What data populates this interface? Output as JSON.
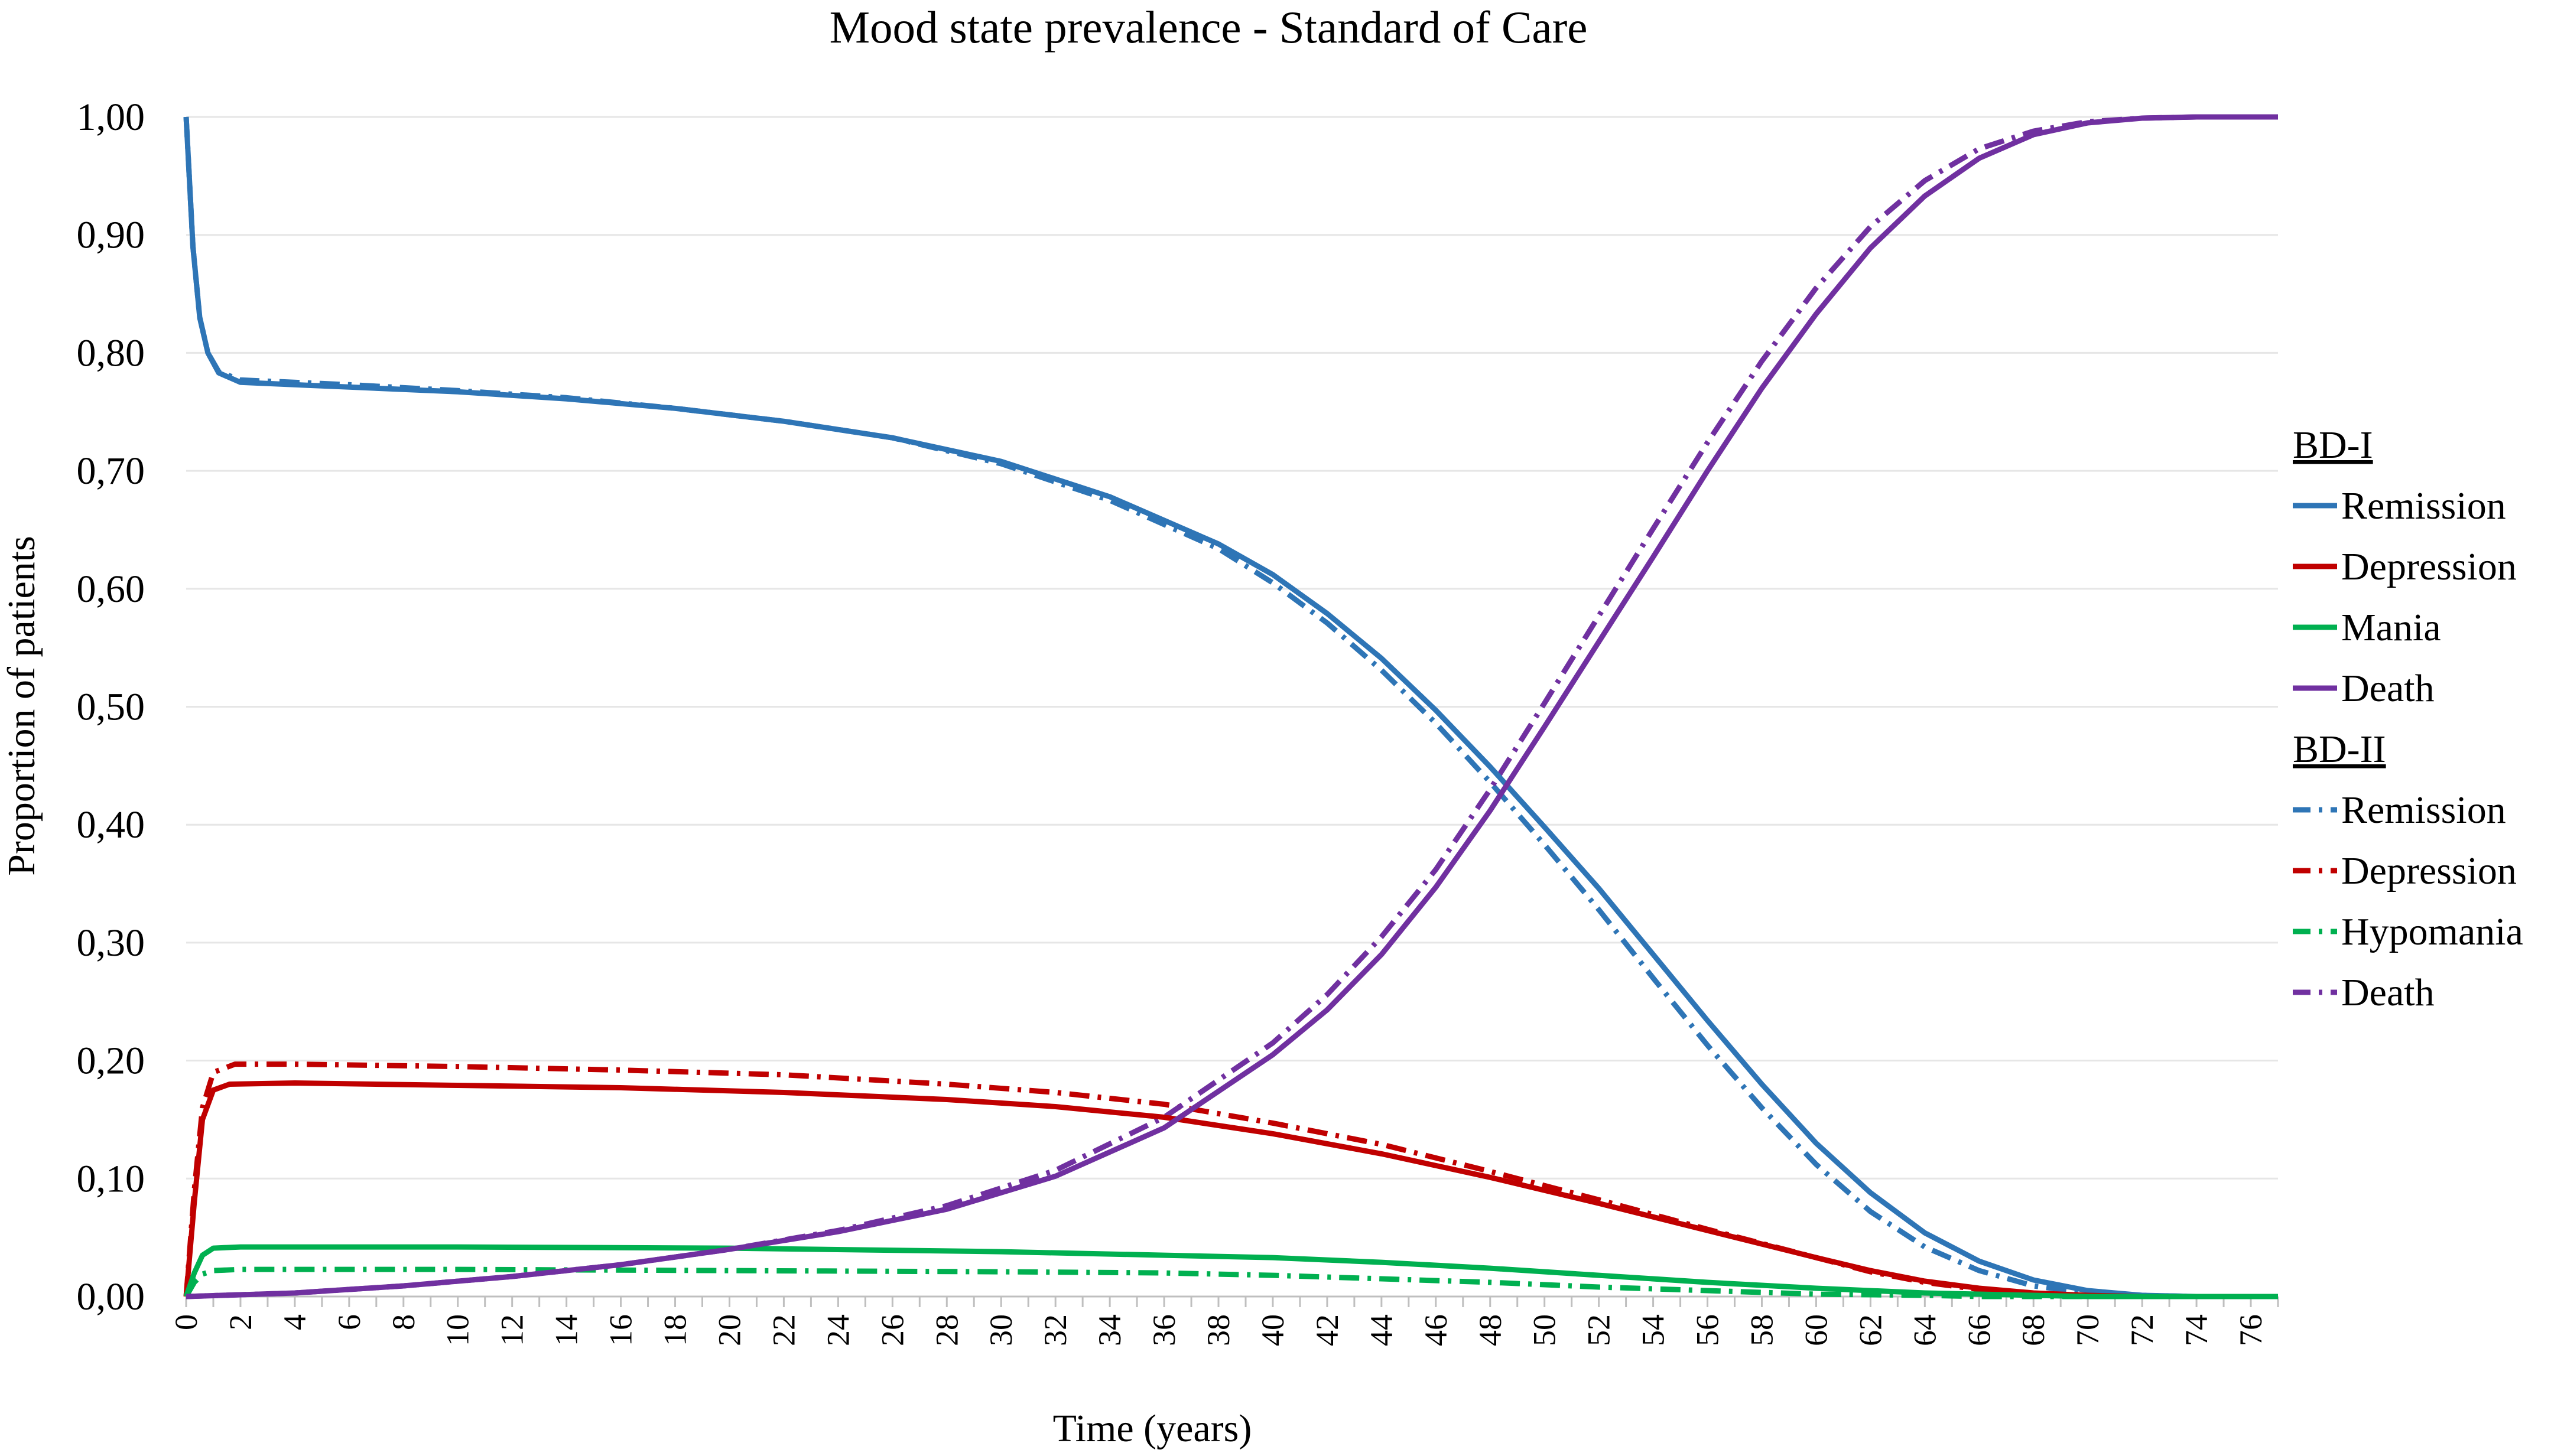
{
  "chart_data": {
    "type": "line",
    "title": "Mood state prevalence - Standard of Care",
    "xlabel": "Time (years)",
    "ylabel": "Proportion of patients",
    "xlim": [
      0,
      77
    ],
    "ylim": [
      0,
      1
    ],
    "x_ticks": [
      "0",
      "2",
      "4",
      "6",
      "8",
      "10",
      "12",
      "14",
      "16",
      "18",
      "20",
      "22",
      "24",
      "26",
      "28",
      "30",
      "32",
      "34",
      "36",
      "38",
      "40",
      "42",
      "44",
      "46",
      "48",
      "50",
      "52",
      "54",
      "56",
      "58",
      "60",
      "62",
      "64",
      "66",
      "68",
      "70",
      "72",
      "74",
      "76"
    ],
    "y_ticks": [
      "0,00",
      "0,10",
      "0,20",
      "0,30",
      "0,40",
      "0,50",
      "0,60",
      "0,70",
      "0,80",
      "0,90",
      "1,00"
    ],
    "colors": {
      "remission": "#2E75B6",
      "depression": "#C00000",
      "mania": "#00B050",
      "death": "#7030A0"
    },
    "legend": {
      "groups": [
        {
          "name": "BD-I",
          "entries": [
            "Remission",
            "Depression",
            "Mania",
            "Death"
          ]
        },
        {
          "name": "BD-II",
          "entries": [
            "Remission",
            "Depression",
            "Hypomania",
            "Death"
          ]
        }
      ]
    },
    "series": [
      {
        "name": "BD-I Remission",
        "group": "BD-I",
        "color": "#2E75B6",
        "style": "solid",
        "points": [
          [
            0,
            1.0
          ],
          [
            0.25,
            0.89
          ],
          [
            0.5,
            0.83
          ],
          [
            0.8,
            0.8
          ],
          [
            1.2,
            0.783
          ],
          [
            2,
            0.775
          ],
          [
            6,
            0.771
          ],
          [
            10,
            0.767
          ],
          [
            14,
            0.761
          ],
          [
            18,
            0.753
          ],
          [
            22,
            0.742
          ],
          [
            26,
            0.728
          ],
          [
            30,
            0.708
          ],
          [
            34,
            0.678
          ],
          [
            38,
            0.638
          ],
          [
            40,
            0.612
          ],
          [
            42,
            0.579
          ],
          [
            44,
            0.541
          ],
          [
            46,
            0.497
          ],
          [
            48,
            0.449
          ],
          [
            50,
            0.398
          ],
          [
            52,
            0.346
          ],
          [
            54,
            0.29
          ],
          [
            56,
            0.234
          ],
          [
            58,
            0.18
          ],
          [
            60,
            0.13
          ],
          [
            62,
            0.088
          ],
          [
            64,
            0.054
          ],
          [
            66,
            0.03
          ],
          [
            68,
            0.014
          ],
          [
            70,
            0.005
          ],
          [
            72,
            0.001
          ],
          [
            74,
            0
          ],
          [
            77,
            0
          ]
        ]
      },
      {
        "name": "BD-I Depression",
        "group": "BD-I",
        "color": "#C00000",
        "style": "solid",
        "points": [
          [
            0,
            0
          ],
          [
            0.3,
            0.08
          ],
          [
            0.6,
            0.15
          ],
          [
            1,
            0.175
          ],
          [
            1.6,
            0.18
          ],
          [
            4,
            0.181
          ],
          [
            10,
            0.179
          ],
          [
            16,
            0.177
          ],
          [
            22,
            0.173
          ],
          [
            28,
            0.167
          ],
          [
            32,
            0.161
          ],
          [
            36,
            0.152
          ],
          [
            40,
            0.138
          ],
          [
            44,
            0.121
          ],
          [
            48,
            0.101
          ],
          [
            52,
            0.079
          ],
          [
            56,
            0.056
          ],
          [
            60,
            0.033
          ],
          [
            62,
            0.022
          ],
          [
            64,
            0.013
          ],
          [
            66,
            0.007
          ],
          [
            68,
            0.003
          ],
          [
            70,
            0.001
          ],
          [
            72,
            0
          ],
          [
            77,
            0
          ]
        ]
      },
      {
        "name": "BD-I Mania",
        "group": "BD-I",
        "color": "#00B050",
        "style": "solid",
        "points": [
          [
            0,
            0
          ],
          [
            0.3,
            0.02
          ],
          [
            0.6,
            0.035
          ],
          [
            1,
            0.041
          ],
          [
            2,
            0.042
          ],
          [
            10,
            0.042
          ],
          [
            20,
            0.041
          ],
          [
            30,
            0.038
          ],
          [
            36,
            0.035
          ],
          [
            40,
            0.033
          ],
          [
            44,
            0.029
          ],
          [
            48,
            0.024
          ],
          [
            52,
            0.018
          ],
          [
            56,
            0.012
          ],
          [
            60,
            0.007
          ],
          [
            64,
            0.003
          ],
          [
            68,
            0.001
          ],
          [
            70,
            0
          ],
          [
            77,
            0
          ]
        ]
      },
      {
        "name": "BD-I Death",
        "group": "BD-I",
        "color": "#7030A0",
        "style": "solid",
        "points": [
          [
            0,
            0
          ],
          [
            4,
            0.003
          ],
          [
            8,
            0.009
          ],
          [
            12,
            0.017
          ],
          [
            16,
            0.027
          ],
          [
            20,
            0.04
          ],
          [
            24,
            0.055
          ],
          [
            28,
            0.074
          ],
          [
            32,
            0.102
          ],
          [
            36,
            0.143
          ],
          [
            40,
            0.205
          ],
          [
            42,
            0.243
          ],
          [
            44,
            0.29
          ],
          [
            46,
            0.347
          ],
          [
            48,
            0.412
          ],
          [
            50,
            0.483
          ],
          [
            52,
            0.555
          ],
          [
            54,
            0.627
          ],
          [
            56,
            0.7
          ],
          [
            58,
            0.77
          ],
          [
            60,
            0.833
          ],
          [
            62,
            0.889
          ],
          [
            64,
            0.933
          ],
          [
            66,
            0.965
          ],
          [
            68,
            0.985
          ],
          [
            70,
            0.995
          ],
          [
            72,
            0.999
          ],
          [
            74,
            1.0
          ],
          [
            77,
            1.0
          ]
        ]
      },
      {
        "name": "BD-II Remission",
        "group": "BD-II",
        "color": "#2E75B6",
        "style": "dashdot",
        "points": [
          [
            0,
            1.0
          ],
          [
            0.25,
            0.89
          ],
          [
            0.5,
            0.83
          ],
          [
            0.8,
            0.8
          ],
          [
            1.2,
            0.784
          ],
          [
            2,
            0.777
          ],
          [
            6,
            0.773
          ],
          [
            10,
            0.768
          ],
          [
            14,
            0.762
          ],
          [
            18,
            0.753
          ],
          [
            22,
            0.742
          ],
          [
            26,
            0.728
          ],
          [
            30,
            0.706
          ],
          [
            34,
            0.675
          ],
          [
            38,
            0.634
          ],
          [
            40,
            0.605
          ],
          [
            42,
            0.571
          ],
          [
            44,
            0.531
          ],
          [
            46,
            0.486
          ],
          [
            48,
            0.436
          ],
          [
            50,
            0.383
          ],
          [
            52,
            0.328
          ],
          [
            54,
            0.27
          ],
          [
            56,
            0.213
          ],
          [
            58,
            0.16
          ],
          [
            60,
            0.112
          ],
          [
            62,
            0.072
          ],
          [
            64,
            0.042
          ],
          [
            66,
            0.022
          ],
          [
            68,
            0.009
          ],
          [
            70,
            0.003
          ],
          [
            72,
            0.001
          ],
          [
            74,
            0
          ],
          [
            77,
            0
          ]
        ]
      },
      {
        "name": "BD-II Depression",
        "group": "BD-II",
        "color": "#C00000",
        "style": "dashdot",
        "points": [
          [
            0,
            0
          ],
          [
            0.3,
            0.09
          ],
          [
            0.6,
            0.16
          ],
          [
            1,
            0.19
          ],
          [
            1.8,
            0.197
          ],
          [
            4,
            0.197
          ],
          [
            10,
            0.195
          ],
          [
            16,
            0.192
          ],
          [
            22,
            0.188
          ],
          [
            28,
            0.18
          ],
          [
            32,
            0.173
          ],
          [
            36,
            0.163
          ],
          [
            40,
            0.147
          ],
          [
            44,
            0.129
          ],
          [
            48,
            0.106
          ],
          [
            52,
            0.082
          ],
          [
            56,
            0.057
          ],
          [
            60,
            0.033
          ],
          [
            62,
            0.021
          ],
          [
            64,
            0.012
          ],
          [
            66,
            0.006
          ],
          [
            68,
            0.002
          ],
          [
            70,
            0.001
          ],
          [
            72,
            0
          ],
          [
            77,
            0
          ]
        ]
      },
      {
        "name": "BD-II Hypomania",
        "group": "BD-II",
        "color": "#00B050",
        "style": "dashdot",
        "points": [
          [
            0,
            0
          ],
          [
            0.3,
            0.012
          ],
          [
            0.6,
            0.019
          ],
          [
            1,
            0.022
          ],
          [
            2,
            0.023
          ],
          [
            10,
            0.023
          ],
          [
            20,
            0.022
          ],
          [
            30,
            0.021
          ],
          [
            36,
            0.02
          ],
          [
            40,
            0.018
          ],
          [
            44,
            0.015
          ],
          [
            48,
            0.012
          ],
          [
            52,
            0.008
          ],
          [
            56,
            0.005
          ],
          [
            60,
            0.002
          ],
          [
            64,
            0.001
          ],
          [
            66,
            0
          ],
          [
            77,
            0
          ]
        ]
      },
      {
        "name": "BD-II Death",
        "group": "BD-II",
        "color": "#7030A0",
        "style": "dashdot",
        "points": [
          [
            0,
            0
          ],
          [
            4,
            0.003
          ],
          [
            8,
            0.009
          ],
          [
            12,
            0.017
          ],
          [
            16,
            0.027
          ],
          [
            20,
            0.04
          ],
          [
            24,
            0.056
          ],
          [
            28,
            0.077
          ],
          [
            32,
            0.107
          ],
          [
            36,
            0.152
          ],
          [
            40,
            0.215
          ],
          [
            42,
            0.256
          ],
          [
            44,
            0.305
          ],
          [
            46,
            0.362
          ],
          [
            48,
            0.43
          ],
          [
            50,
            0.503
          ],
          [
            52,
            0.577
          ],
          [
            54,
            0.651
          ],
          [
            56,
            0.724
          ],
          [
            58,
            0.793
          ],
          [
            60,
            0.855
          ],
          [
            62,
            0.907
          ],
          [
            64,
            0.946
          ],
          [
            66,
            0.973
          ],
          [
            68,
            0.988
          ],
          [
            70,
            0.996
          ],
          [
            72,
            0.999
          ],
          [
            74,
            1.0
          ],
          [
            77,
            1.0
          ]
        ]
      }
    ]
  }
}
